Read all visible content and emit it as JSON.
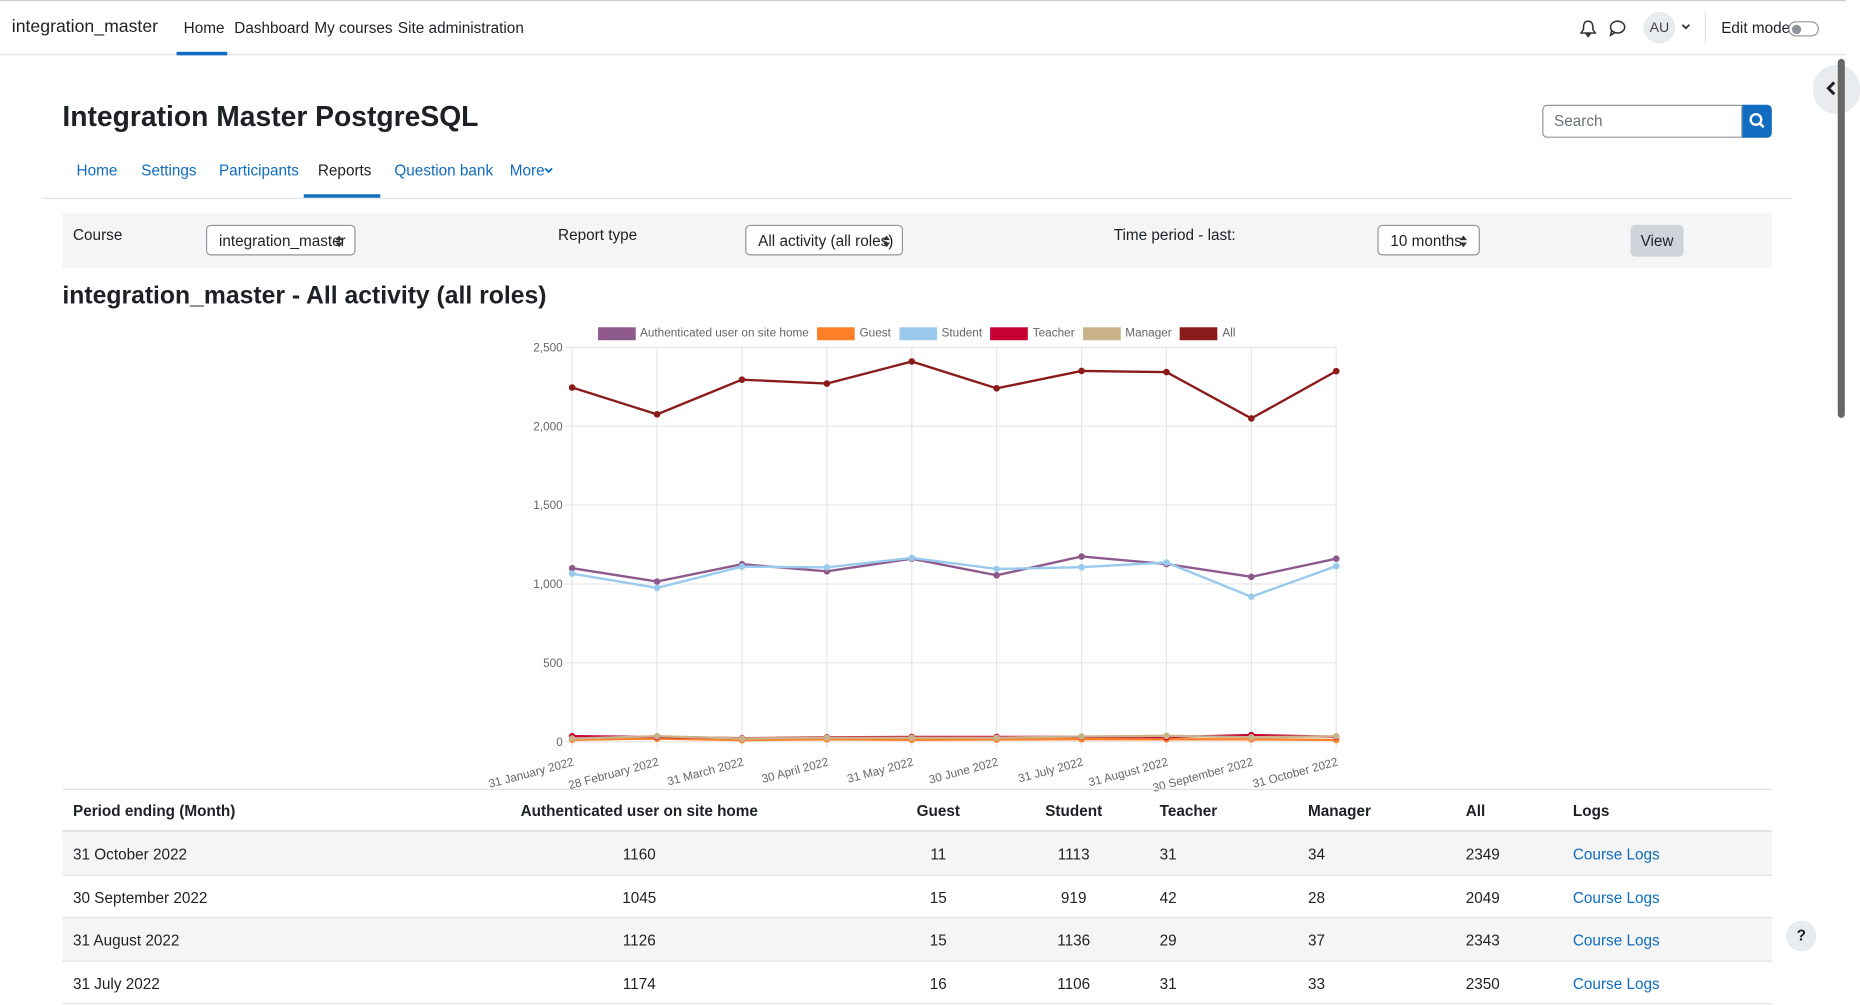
{
  "navbar": {
    "brand": "integration_master",
    "items": [
      "Home",
      "Dashboard",
      "My courses",
      "Site administration"
    ],
    "avatar": "AU",
    "edit_mode": "Edit mode"
  },
  "header": {
    "title": "Integration Master PostgreSQL",
    "search_placeholder": "Search"
  },
  "course_nav": [
    "Home",
    "Settings",
    "Participants",
    "Reports",
    "Question bank",
    "More"
  ],
  "filters": {
    "course_label": "Course",
    "course": "integration_master",
    "report_label": "Report type",
    "report": "All activity (all roles)",
    "period_label": "Time period - last:",
    "period": "10 months",
    "button": "View"
  },
  "report_title": "integration_master - All activity (all roles)",
  "chart_data": {
    "type": "line",
    "categories": [
      "31 January 2022",
      "28 February 2022",
      "31 March 2022",
      "30 April 2022",
      "31 May 2022",
      "30 June 2022",
      "31 July 2022",
      "31 August 2022",
      "30 September 2022",
      "31 October 2022"
    ],
    "series": [
      {
        "name": "Authenticated user on site home",
        "color": "#8e5a8e",
        "values": [
          1100,
          1015,
          1125,
          1080,
          1160,
          1055,
          1174,
          1126,
          1045,
          1160
        ]
      },
      {
        "name": "Guest",
        "color": "#fd7f28",
        "values": [
          12,
          20,
          10,
          15,
          12,
          14,
          16,
          15,
          15,
          11
        ]
      },
      {
        "name": "Student",
        "color": "#99c9ed",
        "values": [
          1065,
          975,
          1110,
          1105,
          1165,
          1095,
          1106,
          1136,
          919,
          1113
        ]
      },
      {
        "name": "Teacher",
        "color": "#c70034",
        "values": [
          35,
          30,
          22,
          28,
          30,
          30,
          31,
          29,
          42,
          31
        ]
      },
      {
        "name": "Manager",
        "color": "#c9b28a",
        "values": [
          20,
          35,
          20,
          25,
          25,
          25,
          33,
          37,
          28,
          34
        ]
      },
      {
        "name": "All",
        "color": "#8b1a1a",
        "values": [
          2245,
          2075,
          2295,
          2270,
          2410,
          2240,
          2350,
          2343,
          2049,
          2349
        ]
      }
    ],
    "ylim": [
      0,
      2500
    ],
    "yticks": [
      0,
      500,
      {
        "value": 1000,
        "label": "1,000"
      },
      {
        "value": 1500,
        "label": "1,500"
      },
      {
        "value": 2000,
        "label": "2,000"
      },
      {
        "value": 2500,
        "label": "2,500"
      }
    ],
    "grid": true,
    "legend": "top"
  },
  "table": {
    "columns": [
      "Period ending (Month)",
      "Authenticated user on site home",
      "Guest",
      "Student",
      "Teacher",
      "Manager",
      "All",
      "Logs"
    ],
    "rows": [
      [
        "31 October 2022",
        1160,
        11,
        1113,
        31,
        34,
        2349,
        "Course Logs"
      ],
      [
        "30 September 2022",
        1045,
        15,
        919,
        42,
        28,
        2049,
        "Course Logs"
      ],
      [
        "31 August 2022",
        1126,
        15,
        1136,
        29,
        37,
        2343,
        "Course Logs"
      ],
      [
        "31 July 2022",
        1174,
        16,
        1106,
        31,
        33,
        2350,
        "Course Logs"
      ]
    ]
  },
  "help": "?"
}
